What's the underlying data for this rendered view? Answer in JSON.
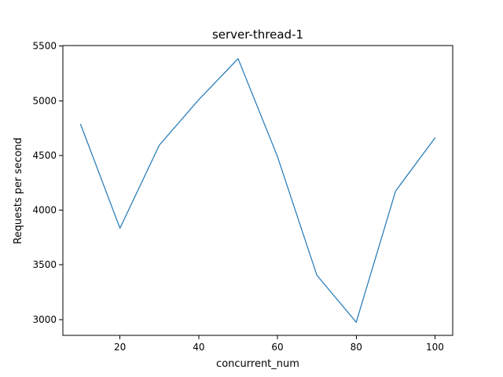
{
  "chart_data": {
    "type": "line",
    "title": "server-thread-1",
    "xlabel": "concurrent_num",
    "ylabel": "Requests per second",
    "x": [
      10,
      20,
      30,
      40,
      50,
      60,
      70,
      80,
      90,
      100
    ],
    "series": [
      {
        "name": "server-thread-1",
        "values": [
          4785,
          3835,
          4595,
          5010,
          5385,
          4490,
          3405,
          2975,
          4175,
          4660
        ]
      }
    ],
    "xlim": [
      5.5,
      104.5
    ],
    "ylim": [
      2855,
      5505
    ],
    "xticks": [
      20,
      40,
      60,
      80,
      100
    ],
    "yticks": [
      3000,
      3500,
      4000,
      4500,
      5000,
      5500
    ],
    "grid": false,
    "legend": "none",
    "line_color": "#1f77b4"
  }
}
